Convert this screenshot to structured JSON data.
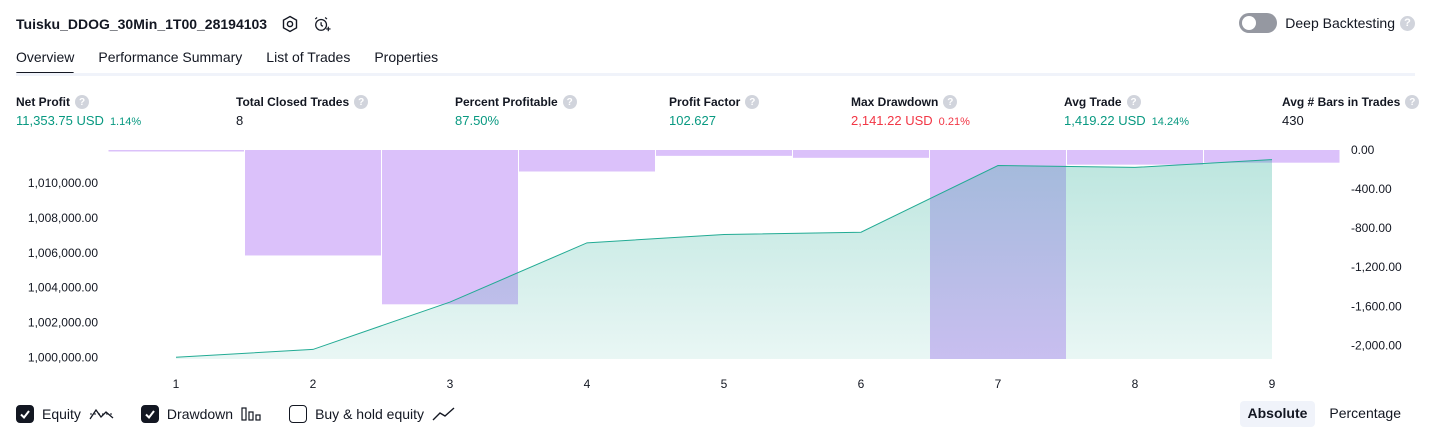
{
  "header": {
    "title": "Tuisku_DDOG_30Min_1T00_28194103",
    "deep_backtesting_label": "Deep Backtesting",
    "help_glyph": "?"
  },
  "tabs": [
    {
      "label": "Overview",
      "active": true
    },
    {
      "label": "Performance Summary"
    },
    {
      "label": "List of Trades"
    },
    {
      "label": "Properties"
    }
  ],
  "metrics": [
    {
      "label": "Net Profit",
      "value": "11,353.75 USD",
      "pct": "1.14%"
    },
    {
      "label": "Total Closed Trades",
      "value": "8"
    },
    {
      "label": "Percent Profitable",
      "value": "87.50%"
    },
    {
      "label": "Profit Factor",
      "value": "102.627"
    },
    {
      "label": "Max Drawdown",
      "value": "2,141.22 USD",
      "pct": "0.21%"
    },
    {
      "label": "Avg Trade",
      "value": "1,419.22 USD",
      "pct": "14.24%"
    },
    {
      "label": "Avg # Bars in Trades",
      "value": "430"
    }
  ],
  "chart_data": {
    "type": "area",
    "x": [
      1,
      2,
      3,
      4,
      5,
      6,
      7,
      8,
      9
    ],
    "series": [
      {
        "values": [
          1000000,
          1000450,
          1003170,
          1006570,
          1007050,
          1007180,
          1011010,
          1010900,
          1011350
        ]
      },
      {
        "values": [
          0,
          -1080,
          -1580,
          -220,
          -60,
          -80,
          -2140,
          -150,
          -130
        ]
      }
    ],
    "left_axis": {
      "ticks": [
        "1,000,000.00",
        "1,002,000.00",
        "1,004,000.00",
        "1,006,000.00",
        "1,008,000.00",
        "1,010,000.00"
      ],
      "range": [
        999900,
        1011900
      ]
    },
    "right_axis": {
      "ticks": [
        "0.00",
        "-400.00",
        "-800.00",
        "-1,200.00",
        "-1,600.00",
        "-2,000.00"
      ],
      "range": [
        -2140,
        0
      ]
    },
    "x_ticks": [
      "1",
      "2",
      "3",
      "4",
      "5",
      "6",
      "7",
      "8",
      "9"
    ],
    "colors": {
      "equity_line": "#22ab94",
      "equity_fill": "#22ab94",
      "drawdown": "#c89ff7"
    }
  },
  "legend": {
    "equity": {
      "label": "Equity",
      "checked": true
    },
    "drawdown": {
      "label": "Drawdown",
      "checked": true
    },
    "buy_hold": {
      "label": "Buy & hold equity",
      "checked": false
    }
  },
  "mode": {
    "absolute": "Absolute",
    "percentage": "Percentage",
    "selected": "Absolute"
  }
}
